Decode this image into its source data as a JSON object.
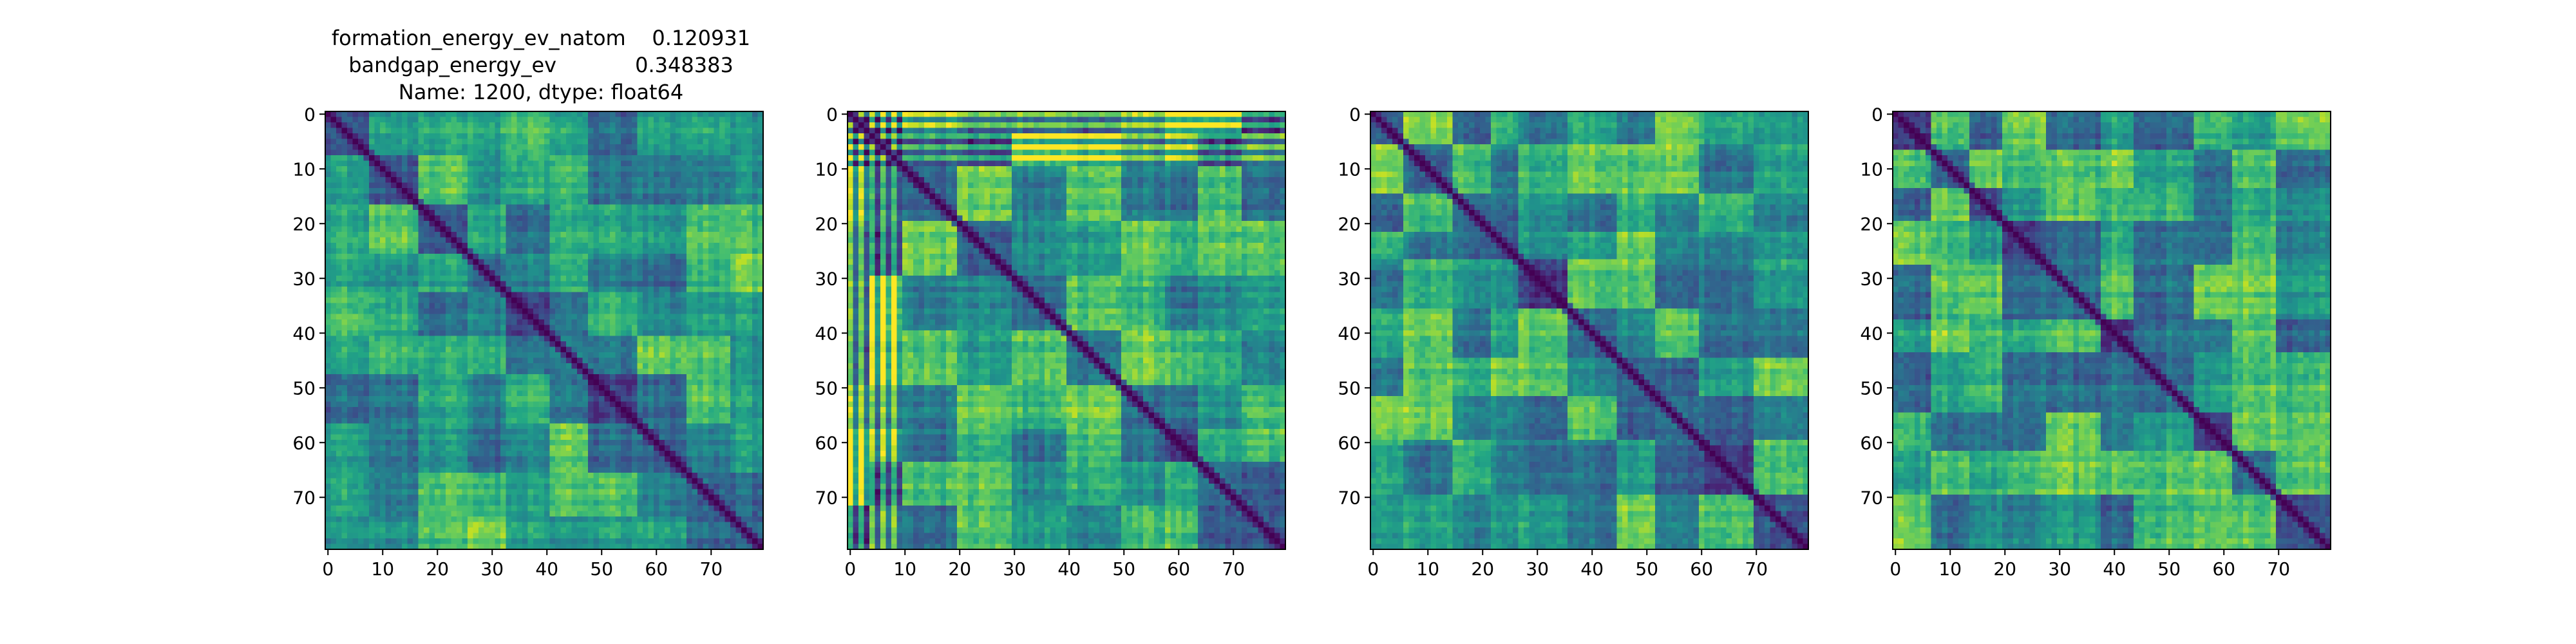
{
  "figure_title": {
    "line1": "formation_energy_ev_natom    0.120931",
    "line2": "bandgap_energy_ev            0.348383",
    "line3": "Name: 1200, dtype: float64"
  },
  "chart_data": [
    {
      "type": "heatmap",
      "title": "",
      "xlabel": "",
      "ylabel": "",
      "size": 80,
      "xlim": [
        0,
        79
      ],
      "ylim": [
        79,
        0
      ],
      "xticks": [
        0,
        10,
        20,
        30,
        40,
        50,
        60,
        70
      ],
      "yticks": [
        0,
        10,
        20,
        30,
        40,
        50,
        60,
        70
      ],
      "colormap": "viridis",
      "diagonal_value": 0,
      "block_boundaries": [
        0,
        8,
        17,
        26,
        33,
        41,
        48,
        57,
        66,
        74,
        80
      ],
      "seed": 11,
      "grid": false
    },
    {
      "type": "heatmap",
      "title": "",
      "xlabel": "",
      "ylabel": "",
      "size": 80,
      "xlim": [
        0,
        79
      ],
      "ylim": [
        79,
        0
      ],
      "xticks": [
        0,
        10,
        20,
        30,
        40,
        50,
        60,
        70
      ],
      "yticks": [
        0,
        10,
        20,
        30,
        40,
        50,
        60,
        70
      ],
      "colormap": "viridis",
      "diagonal_value": 0,
      "block_boundaries": [
        0,
        4,
        10,
        20,
        30,
        40,
        50,
        58,
        64,
        72,
        80
      ],
      "striped_rows_until": 10,
      "seed": 23,
      "grid": false
    },
    {
      "type": "heatmap",
      "title": "",
      "xlabel": "",
      "ylabel": "",
      "size": 80,
      "xlim": [
        0,
        79
      ],
      "ylim": [
        79,
        0
      ],
      "xticks": [
        0,
        10,
        20,
        30,
        40,
        50,
        60,
        70
      ],
      "yticks": [
        0,
        10,
        20,
        30,
        40,
        50,
        60,
        70
      ],
      "colormap": "viridis",
      "diagonal_value": 0,
      "block_boundaries": [
        0,
        6,
        15,
        22,
        27,
        36,
        45,
        52,
        60,
        70,
        80
      ],
      "seed": 37,
      "grid": false
    },
    {
      "type": "heatmap",
      "title": "",
      "xlabel": "",
      "ylabel": "",
      "size": 80,
      "xlim": [
        0,
        79
      ],
      "ylim": [
        79,
        0
      ],
      "xticks": [
        0,
        10,
        20,
        30,
        40,
        50,
        60,
        70
      ],
      "yticks": [
        0,
        10,
        20,
        30,
        40,
        50,
        60,
        70
      ],
      "colormap": "viridis",
      "diagonal_value": 0,
      "block_boundaries": [
        0,
        7,
        14,
        20,
        28,
        38,
        44,
        55,
        62,
        70,
        80
      ],
      "seed": 53,
      "grid": false
    }
  ]
}
